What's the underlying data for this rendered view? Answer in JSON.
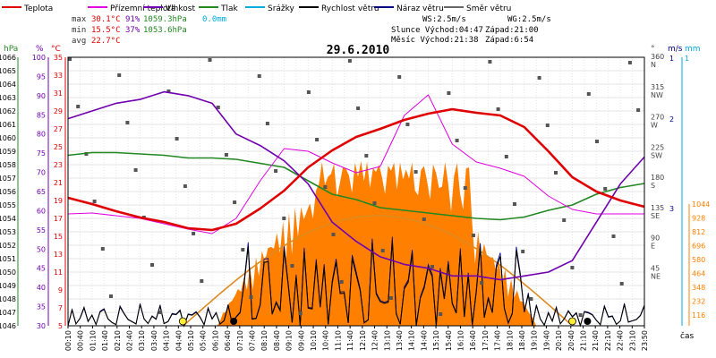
{
  "chart_data": {
    "type": "line",
    "title": "29.6.2010",
    "xlabel": "čas",
    "legend": [
      {
        "name": "Teplota",
        "color": "#e00000"
      },
      {
        "name": "Přízemní teplota",
        "color": "#e000e0"
      },
      {
        "name": "Vlhkost",
        "color": "#7000b0"
      },
      {
        "name": "Tlak",
        "color": "#228822"
      },
      {
        "name": "Srážky",
        "color": "#00aadd"
      },
      {
        "name": "Rychlost větru",
        "color": "#000000"
      },
      {
        "name": "Náraz větru",
        "color": "#000080"
      },
      {
        "name": "Směr větru",
        "color": "#666666"
      }
    ],
    "stats": {
      "max": {
        "label": "max",
        "temp": "30.1°C",
        "hum": "91%",
        "pres": "1059.3hPa",
        "rain": "0.0mm"
      },
      "min": {
        "label": "min",
        "temp": "15.5°C",
        "hum": "37%",
        "pres": "1053.6hPa"
      },
      "avg": {
        "label": "avg",
        "temp": "22.7°C"
      }
    },
    "wind_info": {
      "ws": "WS:2.5m/s",
      "wg": "WG:2.5m/s"
    },
    "sun": {
      "sunrise": "Slunce Východ:04:47",
      "sunset": "Západ:21:00"
    },
    "moon": {
      "moonrise": "Měsíc  Východ:21:38",
      "moonset": "Západ:6:54"
    },
    "axes": {
      "hpa": {
        "unit": "hPa",
        "range": [
          1046,
          1066
        ],
        "ticks": [
          "1066",
          "1065",
          "1064",
          "1063",
          "1062",
          "1061",
          "1060",
          "1059",
          "1058",
          "1057",
          "1056",
          "1055",
          "1054",
          "1053",
          "1052",
          "1051",
          "1050",
          "1049",
          "1048",
          "1047",
          "1046"
        ]
      },
      "percent": {
        "unit": "%",
        "range": [
          30,
          100
        ],
        "ticks": [
          "100",
          "95",
          "90",
          "85",
          "80",
          "75",
          "70",
          "65",
          "60",
          "55",
          "50",
          "45",
          "40",
          "35",
          "30"
        ]
      },
      "celsius": {
        "unit": "°C",
        "range": [
          5,
          35
        ],
        "ticks": [
          "35",
          "33",
          "31",
          "29",
          "27",
          "25",
          "23",
          "21",
          "19",
          "17",
          "15",
          "13",
          "11",
          "9",
          "7",
          "5"
        ]
      },
      "direction": {
        "unit": "°",
        "ticks": [
          {
            "deg": "360",
            "dir": "N"
          },
          {
            "deg": "315",
            "dir": "NW"
          },
          {
            "deg": "270",
            "dir": "W"
          },
          {
            "deg": "225",
            "dir": "SW"
          },
          {
            "deg": "180",
            "dir": "S"
          },
          {
            "deg": "135",
            "dir": "SE"
          },
          {
            "deg": "90",
            "dir": "E"
          },
          {
            "deg": "45",
            "dir": "NE"
          }
        ]
      },
      "wind": {
        "unit": "m/s",
        "ticks": [
          "3",
          "2",
          "1"
        ]
      },
      "rain": {
        "unit": "mm",
        "ticks": [
          "1"
        ]
      },
      "radiation": {
        "ticks": [
          "1044",
          "928",
          "812",
          "696",
          "580",
          "464",
          "348",
          "232",
          "116"
        ]
      }
    },
    "x_ticks": [
      "00:10",
      "00:40",
      "01:10",
      "01:40",
      "02:10",
      "02:40",
      "03:10",
      "03:40",
      "04:10",
      "04:40",
      "05:10",
      "05:40",
      "06:10",
      "06:40",
      "07:10",
      "07:40",
      "08:10",
      "08:40",
      "09:10",
      "09:40",
      "10:10",
      "10:40",
      "11:10",
      "11:40",
      "12:10",
      "12:40",
      "13:10",
      "13:40",
      "14:10",
      "14:40",
      "15:10",
      "15:40",
      "16:10",
      "16:40",
      "17:10",
      "17:40",
      "18:10",
      "18:40",
      "19:10",
      "19:40",
      "20:10",
      "20:40",
      "21:10",
      "21:40",
      "22:10",
      "22:40",
      "23:10",
      "23:50"
    ],
    "series": [
      {
        "name": "Teplota",
        "unit": "°C",
        "x": [
          0,
          1,
          2,
          3,
          4,
          5,
          6,
          7,
          8,
          9,
          10,
          11,
          12,
          13,
          14,
          15,
          16,
          17,
          18,
          19,
          20,
          21,
          22,
          23,
          24
        ],
        "values": [
          19.3,
          18.6,
          17.8,
          17.1,
          16.6,
          15.9,
          15.7,
          16.4,
          18.1,
          20.1,
          22.7,
          24.6,
          26.1,
          27.0,
          28.0,
          28.7,
          29.2,
          28.8,
          28.5,
          27.2,
          24.5,
          21.6,
          20.0,
          19.0,
          18.3
        ]
      },
      {
        "name": "Přízemní teplota",
        "unit": "°C",
        "x": [
          0,
          1,
          2,
          3,
          4,
          5,
          6,
          7,
          8,
          9,
          10,
          11,
          12,
          13,
          14,
          15,
          16,
          17,
          18,
          19,
          20,
          21,
          22,
          23,
          24
        ],
        "values": [
          17.5,
          17.6,
          17.3,
          17.0,
          16.4,
          15.8,
          15.3,
          17.0,
          21.2,
          24.8,
          24.5,
          23.2,
          22.1,
          22.8,
          28.5,
          30.8,
          25.3,
          23.3,
          22.6,
          21.7,
          19.5,
          18.0,
          17.5,
          17.5,
          17.5
        ]
      },
      {
        "name": "Vlhkost",
        "unit": "%",
        "x": [
          0,
          1,
          2,
          3,
          4,
          5,
          6,
          7,
          8,
          9,
          10,
          11,
          12,
          13,
          14,
          15,
          16,
          17,
          18,
          19,
          20,
          21,
          22,
          23,
          24
        ],
        "values": [
          84,
          86,
          88,
          89,
          91,
          90,
          88,
          80,
          77,
          73,
          67,
          57,
          52,
          48,
          46,
          45,
          43,
          43,
          42,
          43,
          44,
          47,
          57,
          67,
          74
        ]
      },
      {
        "name": "Tlak",
        "unit": "hPa",
        "x": [
          0,
          1,
          2,
          3,
          4,
          5,
          6,
          7,
          8,
          9,
          10,
          11,
          12,
          13,
          14,
          15,
          16,
          17,
          18,
          19,
          20,
          21,
          22,
          23,
          24
        ],
        "values": [
          1058.7,
          1058.9,
          1058.9,
          1058.8,
          1058.7,
          1058.5,
          1058.5,
          1058.4,
          1058.1,
          1057.8,
          1056.8,
          1055.8,
          1055.4,
          1054.8,
          1054.6,
          1054.4,
          1054.2,
          1054.0,
          1053.9,
          1054.1,
          1054.6,
          1055.0,
          1055.8,
          1056.3,
          1056.6
        ]
      },
      {
        "name": "Srážky",
        "unit": "mm",
        "values": [
          0
        ]
      }
    ]
  },
  "decor": {
    "bg": "#ffffff",
    "grid": "#e4e4e4",
    "frame": "#000000",
    "radiation_color": "#ff8000",
    "solar_line_color": "#dd8a20",
    "sun_marker": "#ffee33",
    "moon_marker": "#000000"
  }
}
